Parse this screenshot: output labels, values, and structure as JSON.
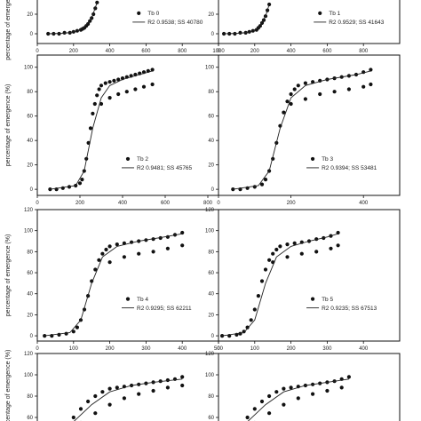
{
  "chart_data": [
    {
      "type": "scatter",
      "title": "",
      "ylabel": "percentage of emergence (%)",
      "xlim": [
        0,
        1000
      ],
      "ylim": [
        -10,
        40
      ],
      "xticks": [
        0,
        200,
        400,
        600,
        800,
        1000
      ],
      "xtick_labels": [
        "0",
        "200",
        "400",
        "600",
        "800",
        "1000"
      ],
      "yticks": [
        0,
        20
      ],
      "ytick_labels": [
        "0",
        "20"
      ],
      "legend": {
        "placement": "right",
        "point_label": "Tb 0",
        "line_label": "R2 0.9538; SS 40780"
      },
      "series": [
        {
          "kind": "points",
          "x": [
            60,
            90,
            120,
            150,
            180,
            200,
            220,
            240,
            250,
            260,
            270,
            280,
            290,
            300,
            310,
            320,
            330
          ],
          "y": [
            0,
            0,
            0,
            1,
            1,
            2,
            3,
            4,
            5,
            6,
            8,
            10,
            13,
            16,
            20,
            26,
            32
          ]
        },
        {
          "kind": "fit",
          "x": [
            60,
            150,
            200,
            250,
            300,
            330
          ],
          "y": [
            0,
            0.5,
            2,
            5,
            16,
            32
          ]
        }
      ]
    },
    {
      "type": "scatter",
      "title": "",
      "ylabel": "",
      "xlim": [
        0,
        1000
      ],
      "ylim": [
        -10,
        40
      ],
      "xticks": [
        0,
        200,
        400,
        600,
        800
      ],
      "xtick_labels": [
        "0",
        "200",
        "400",
        "600",
        "800"
      ],
      "yticks": [
        0,
        20
      ],
      "ytick_labels": [
        "0",
        "20"
      ],
      "legend": {
        "placement": "right",
        "point_label": "Tb 1",
        "line_label": "R2 0.9529; SS 41643"
      },
      "series": [
        {
          "kind": "points",
          "x": [
            30,
            60,
            90,
            120,
            150,
            170,
            190,
            210,
            220,
            230,
            240,
            250,
            260,
            270,
            280
          ],
          "y": [
            0,
            0,
            0,
            1,
            1,
            2,
            3,
            4,
            6,
            8,
            11,
            14,
            18,
            24,
            30
          ]
        },
        {
          "kind": "fit",
          "x": [
            30,
            120,
            180,
            220,
            260,
            280
          ],
          "y": [
            0,
            0.5,
            2,
            6,
            18,
            30
          ]
        }
      ]
    },
    {
      "type": "scatter",
      "title": "",
      "ylabel": "percentage of emergence (%)",
      "xlim": [
        0,
        850
      ],
      "ylim": [
        -5,
        110
      ],
      "xticks": [
        0,
        200,
        400,
        600,
        800
      ],
      "xtick_labels": [
        "0",
        "200",
        "400",
        "600",
        "800"
      ],
      "yticks": [
        0,
        20,
        40,
        60,
        80,
        100
      ],
      "ytick_labels": [
        "0",
        "20",
        "40",
        "60",
        "80",
        "100"
      ],
      "legend": {
        "placement": "bottom-right",
        "point_label": "Tb 2",
        "line_label": "R2 0.9481; SS 45765"
      },
      "series": [
        {
          "kind": "points",
          "x": [
            60,
            90,
            120,
            150,
            180,
            200,
            210,
            220,
            230,
            240,
            250,
            260,
            270,
            280,
            290,
            300,
            320,
            340,
            360,
            380,
            400,
            420,
            440,
            460,
            480,
            500,
            520,
            540
          ],
          "y": [
            0,
            0,
            1,
            2,
            3,
            5,
            8,
            15,
            25,
            38,
            50,
            62,
            70,
            77,
            82,
            85,
            87,
            88,
            89,
            90,
            91,
            92,
            93,
            94,
            95,
            96,
            97,
            98
          ]
        },
        {
          "kind": "points",
          "x": [
            300,
            340,
            380,
            420,
            460,
            500,
            540
          ],
          "y": [
            70,
            75,
            78,
            80,
            82,
            84,
            86
          ]
        },
        {
          "kind": "fit",
          "x": [
            60,
            180,
            220,
            260,
            300,
            340,
            400,
            480,
            540
          ],
          "y": [
            0,
            3,
            15,
            50,
            75,
            85,
            90,
            94,
            97
          ]
        }
      ]
    },
    {
      "type": "scatter",
      "title": "",
      "ylabel": "",
      "xlim": [
        0,
        500
      ],
      "ylim": [
        -5,
        110
      ],
      "xticks": [
        0,
        200,
        400
      ],
      "xtick_labels": [
        "0",
        "200",
        "400"
      ],
      "yticks": [
        0,
        20,
        40,
        60,
        80,
        100
      ],
      "ytick_labels": [
        "0",
        "20",
        "40",
        "60",
        "80",
        "100"
      ],
      "legend": {
        "placement": "bottom-right",
        "point_label": "Tb 3",
        "line_label": "R2 0.9394; SS 53481"
      },
      "series": [
        {
          "kind": "points",
          "x": [
            40,
            60,
            80,
            100,
            120,
            130,
            140,
            150,
            160,
            170,
            180,
            190,
            200,
            210,
            220,
            240,
            260,
            280,
            300,
            320,
            340,
            360,
            380,
            400,
            420
          ],
          "y": [
            0,
            0,
            1,
            2,
            4,
            8,
            15,
            25,
            38,
            52,
            63,
            72,
            78,
            82,
            85,
            87,
            88,
            89,
            90,
            91,
            92,
            93,
            94,
            96,
            98
          ]
        },
        {
          "kind": "points",
          "x": [
            200,
            240,
            280,
            320,
            360,
            400,
            420
          ],
          "y": [
            70,
            74,
            78,
            80,
            82,
            84,
            86
          ]
        },
        {
          "kind": "fit",
          "x": [
            40,
            110,
            140,
            170,
            200,
            240,
            300,
            380,
            420
          ],
          "y": [
            0,
            3,
            15,
            50,
            75,
            85,
            90,
            94,
            97
          ]
        }
      ]
    },
    {
      "type": "scatter",
      "title": "",
      "ylabel": "percentage of emergence (%)",
      "xlim": [
        0,
        500
      ],
      "ylim": [
        -5,
        120
      ],
      "xticks": [
        0,
        100,
        200,
        300,
        400,
        500
      ],
      "xtick_labels": [
        "0",
        "100",
        "200",
        "300",
        "400",
        "500"
      ],
      "yticks": [
        0,
        20,
        40,
        60,
        80,
        100,
        120
      ],
      "ytick_labels": [
        "0",
        "20",
        "40",
        "60",
        "80",
        "100",
        "120"
      ],
      "legend": {
        "placement": "right",
        "point_label": "Tb 4",
        "line_label": "R2 0.9295; SS 62211"
      },
      "series": [
        {
          "kind": "points",
          "x": [
            20,
            40,
            60,
            80,
            100,
            110,
            120,
            130,
            140,
            150,
            160,
            170,
            180,
            190,
            200,
            220,
            240,
            260,
            280,
            300,
            320,
            340,
            360,
            380,
            400
          ],
          "y": [
            0,
            0,
            1,
            2,
            4,
            8,
            15,
            25,
            38,
            52,
            63,
            72,
            78,
            82,
            85,
            87,
            88,
            89,
            90,
            91,
            92,
            93,
            94,
            96,
            98
          ]
        },
        {
          "kind": "points",
          "x": [
            200,
            240,
            280,
            320,
            360,
            400
          ],
          "y": [
            70,
            75,
            78,
            80,
            83,
            86
          ]
        },
        {
          "kind": "fit",
          "x": [
            20,
            90,
            120,
            150,
            180,
            220,
            280,
            350,
            400
          ],
          "y": [
            0,
            3,
            15,
            50,
            75,
            85,
            90,
            94,
            97
          ]
        }
      ]
    },
    {
      "type": "scatter",
      "title": "",
      "ylabel": "",
      "xlim": [
        0,
        500
      ],
      "ylim": [
        -5,
        120
      ],
      "xticks": [
        0,
        100,
        200,
        300,
        400
      ],
      "xtick_labels": [
        "0",
        "100",
        "200",
        "300",
        "400"
      ],
      "yticks": [
        0,
        20,
        40,
        60,
        80,
        100,
        120
      ],
      "ytick_labels": [
        "0",
        "20",
        "40",
        "60",
        "80",
        "100",
        "120"
      ],
      "legend": {
        "placement": "right",
        "point_label": "Tb 5",
        "line_label": "R2 0.9235; SS 67513"
      },
      "series": [
        {
          "kind": "points",
          "x": [
            10,
            30,
            50,
            60,
            70,
            80,
            90,
            100,
            110,
            120,
            130,
            140,
            150,
            160,
            170,
            190,
            210,
            230,
            250,
            270,
            290,
            310,
            330
          ],
          "y": [
            0,
            0,
            1,
            2,
            4,
            8,
            15,
            25,
            38,
            52,
            63,
            72,
            78,
            82,
            85,
            87,
            88,
            89,
            90,
            92,
            93,
            95,
            98
          ]
        },
        {
          "kind": "points",
          "x": [
            150,
            190,
            230,
            270,
            310,
            330
          ],
          "y": [
            70,
            75,
            78,
            80,
            83,
            86
          ]
        },
        {
          "kind": "fit",
          "x": [
            10,
            70,
            100,
            130,
            160,
            200,
            250,
            300,
            330
          ],
          "y": [
            0,
            3,
            15,
            50,
            75,
            85,
            90,
            94,
            97
          ]
        }
      ]
    },
    {
      "type": "scatter",
      "title": "",
      "ylabel": "percentage of emergence (%)",
      "xlim": [
        0,
        500
      ],
      "ylim": [
        50,
        120
      ],
      "xticks": [],
      "xtick_labels": [],
      "yticks": [
        60,
        80,
        100,
        120
      ],
      "ytick_labels": [
        "60",
        "80",
        "100",
        "120"
      ],
      "legend": null,
      "series": [
        {
          "kind": "points",
          "x": [
            100,
            120,
            140,
            160,
            180,
            200,
            220,
            240,
            260,
            280,
            300,
            320,
            340,
            360,
            380,
            400
          ],
          "y": [
            60,
            68,
            75,
            80,
            84,
            87,
            88,
            89,
            90,
            91,
            92,
            93,
            94,
            95,
            96,
            98
          ]
        },
        {
          "kind": "points",
          "x": [
            120,
            160,
            200,
            240,
            280,
            320,
            360,
            400
          ],
          "y": [
            55,
            64,
            72,
            78,
            82,
            85,
            88,
            90
          ]
        },
        {
          "kind": "fit",
          "x": [
            100,
            150,
            200,
            260,
            320,
            400
          ],
          "y": [
            56,
            72,
            84,
            90,
            93,
            96
          ]
        }
      ]
    },
    {
      "type": "scatter",
      "title": "",
      "ylabel": "",
      "xlim": [
        0,
        500
      ],
      "ylim": [
        50,
        120
      ],
      "xticks": [],
      "xtick_labels": [],
      "yticks": [
        60,
        80,
        100,
        120
      ],
      "ytick_labels": [
        "60",
        "80",
        "100",
        "120"
      ],
      "legend": null,
      "series": [
        {
          "kind": "points",
          "x": [
            80,
            100,
            120,
            140,
            160,
            180,
            200,
            220,
            240,
            260,
            280,
            300,
            320,
            340,
            360
          ],
          "y": [
            60,
            68,
            75,
            80,
            84,
            87,
            88,
            89,
            90,
            91,
            92,
            93,
            94,
            96,
            98
          ]
        },
        {
          "kind": "points",
          "x": [
            100,
            140,
            180,
            220,
            260,
            300,
            340
          ],
          "y": [
            55,
            64,
            72,
            78,
            82,
            85,
            88
          ]
        },
        {
          "kind": "fit",
          "x": [
            80,
            130,
            180,
            240,
            300,
            360
          ],
          "y": [
            56,
            72,
            84,
            90,
            93,
            96
          ]
        }
      ]
    }
  ]
}
